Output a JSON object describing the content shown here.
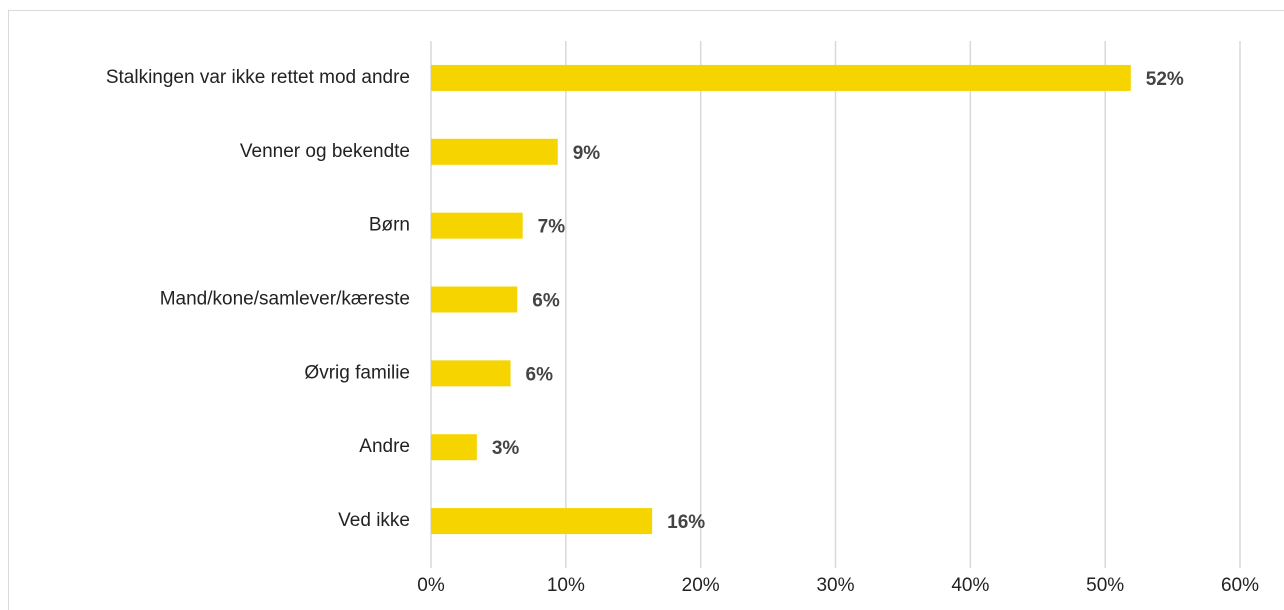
{
  "chart_data": {
    "type": "bar",
    "categories": [
      "Stalkingen var ikke rettet mod andre",
      "Venner og bekendte",
      "Børn",
      "Mand/kone/samlever/kæreste",
      "Øvrig familie",
      "Andre",
      "Ved ikke"
    ],
    "values": [
      51.9,
      9.4,
      6.8,
      6.4,
      5.9,
      3.4,
      16.4
    ],
    "value_labels": [
      "52%",
      "9%",
      "7%",
      "6%",
      "6%",
      "3%",
      "16%"
    ],
    "color": "#f5d400",
    "xlim": [
      0,
      60
    ],
    "xticks": [
      {
        "value": 0,
        "label": "0%"
      },
      {
        "value": 10,
        "label": "10%"
      },
      {
        "value": 20,
        "label": "20%"
      },
      {
        "value": 30,
        "label": "30%"
      },
      {
        "value": 40,
        "label": "40%"
      },
      {
        "value": 50,
        "label": "50%"
      },
      {
        "value": 60,
        "label": "60%"
      }
    ],
    "grid": true
  }
}
